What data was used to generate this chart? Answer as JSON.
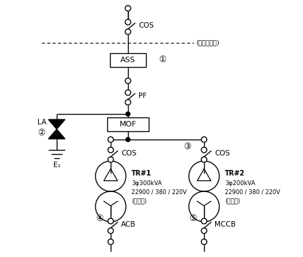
{
  "background_color": "#ffffff",
  "line_color": "#000000",
  "text_color": "#000000",
  "fig_width": 4.38,
  "fig_height": 3.72,
  "dpi": 100,
  "labels": {
    "cos_top": "COS",
    "responsibility": "(첵임분계점)",
    "ass": "ASS",
    "circle1": "①",
    "pf": "PF",
    "mof": "MOF",
    "la": "LA",
    "circle2": "②",
    "e1": "E₁",
    "cos_left": "COS",
    "cos_right": "COS",
    "circle3": "③",
    "tr1_name": "TR#1",
    "tr1_spec1": "3φ300kVA",
    "tr1_spec2": "22900 / 380 / 220V",
    "tr1_use": "(동력용)",
    "tr2_name": "TR#2",
    "tr2_spec1": "3φ200kVA",
    "tr2_spec2": "22900 / 380 / 220V",
    "tr2_use": "(전등용)",
    "acb": "ACB",
    "circle4": "④",
    "mccb": "MCCB",
    "circle5": "⑤"
  }
}
